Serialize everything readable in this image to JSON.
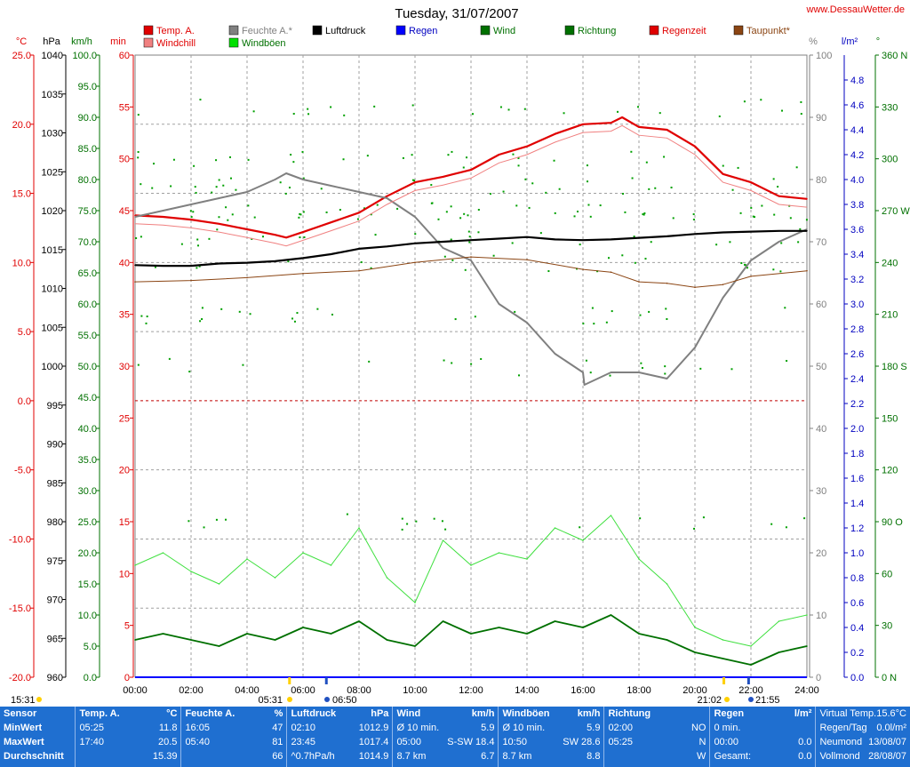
{
  "header": {
    "title": "Tuesday, 31/07/2007",
    "site": "www.DessauWetter.de"
  },
  "axes": {
    "units": {
      "temp": "°C",
      "pressure": "hPa",
      "speed": "km/h",
      "minutes": "min",
      "percent": "%",
      "rain": "l/m²",
      "direction": "°"
    },
    "temp_ticks": [
      "25.0",
      "20.0",
      "15.0",
      "10.0",
      "5.0",
      "0.0",
      "-5.0",
      "-10.0",
      "-15.0",
      "-20.0"
    ],
    "pressure_ticks": [
      "1040",
      "1035",
      "1030",
      "1025",
      "1020",
      "1015",
      "1010",
      "1005",
      "1000",
      "995",
      "990",
      "985",
      "980",
      "975",
      "970",
      "965",
      "960"
    ],
    "speed_ticks": [
      "100.0",
      "95.0",
      "90.0",
      "85.0",
      "80.0",
      "75.0",
      "70.0",
      "65.0",
      "60.0",
      "55.0",
      "50.0",
      "45.0",
      "40.0",
      "35.0",
      "30.0",
      "25.0",
      "20.0",
      "15.0",
      "10.0",
      "5.0",
      "0.0"
    ],
    "min_ticks": [
      "60",
      "55",
      "50",
      "45",
      "40",
      "35",
      "30",
      "25",
      "20",
      "15",
      "10",
      "5",
      "0"
    ],
    "percent_ticks": [
      "100",
      "90",
      "80",
      "70",
      "60",
      "50",
      "40",
      "30",
      "20",
      "10",
      "0"
    ],
    "rain_ticks": [
      "4.8",
      "4.6",
      "4.4",
      "4.2",
      "4.0",
      "3.8",
      "3.6",
      "3.4",
      "3.2",
      "3.0",
      "2.8",
      "2.6",
      "2.4",
      "2.2",
      "2.0",
      "1.8",
      "1.6",
      "1.4",
      "1.2",
      "1.0",
      "0.8",
      "0.6",
      "0.4",
      "0.2",
      "0.0"
    ],
    "dir_ticks": [
      "360 N",
      "330",
      "300",
      "270 W",
      "240",
      "210",
      "180 S",
      "150",
      "120",
      "90 O",
      "60",
      "30",
      "0 N"
    ],
    "x_ticks": [
      "00:00",
      "02:00",
      "04:00",
      "06:00",
      "08:00",
      "10:00",
      "12:00",
      "14:00",
      "16:00",
      "18:00",
      "20:00",
      "22:00",
      "24:00"
    ]
  },
  "legend": [
    {
      "label": "Temp. A.",
      "color": "#e00000"
    },
    {
      "label": "Windchill",
      "color": "#f08080"
    },
    {
      "label": "Feuchte A.*",
      "color": "#808080"
    },
    {
      "label": "Windböen",
      "color": "#00e000"
    },
    {
      "label": "Luftdruck",
      "color": "#000000"
    },
    {
      "label": "Regen",
      "color": "#0000ff"
    },
    {
      "label": "Wind",
      "color": "#007000"
    },
    {
      "label": "Richtung",
      "color": "#007000"
    },
    {
      "label": "Regenzeit",
      "color": "#e00000"
    },
    {
      "label": "Taupunkt*",
      "color": "#8b4513"
    }
  ],
  "sun": {
    "prev_sunset": "15:31",
    "sunrise": "05:31",
    "moonrise": "06:50",
    "sunset": "21:02",
    "moonset": "21:55"
  },
  "chart_data": {
    "type": "line",
    "title": "Tuesday, 31/07/2007",
    "x_unit": "hours",
    "xlim": [
      0,
      24
    ],
    "ylim_temp": [
      -20,
      25
    ],
    "ylim_pressure": [
      960,
      1040
    ],
    "ylim_wind": [
      0,
      100
    ],
    "ylim_humidity": [
      0,
      100
    ],
    "series": [
      {
        "name": "Temp. A.",
        "unit": "°C",
        "x": [
          0,
          1,
          2,
          3,
          4,
          5,
          5.4,
          6,
          7,
          8,
          9,
          10,
          11,
          12,
          13,
          14,
          15,
          16,
          17,
          17.4,
          18,
          19,
          20,
          21,
          22,
          23,
          24
        ],
        "values": [
          13.4,
          13.3,
          13.1,
          12.8,
          12.4,
          12.0,
          11.8,
          12.2,
          12.9,
          13.6,
          14.8,
          15.8,
          16.2,
          16.7,
          17.8,
          18.4,
          19.3,
          20.0,
          20.1,
          20.5,
          19.8,
          19.6,
          18.4,
          16.4,
          15.8,
          14.8,
          14.6
        ]
      },
      {
        "name": "Feuchte A.*",
        "unit": "%",
        "x": [
          0,
          1,
          2,
          3,
          4,
          5,
          5.4,
          6,
          7,
          8,
          9,
          10,
          11,
          12,
          13,
          14,
          15,
          16,
          16.05,
          17,
          18,
          19,
          20,
          21,
          22,
          23,
          24
        ],
        "values": [
          74,
          75,
          76,
          77,
          78,
          80,
          81,
          80,
          79,
          78,
          77,
          74,
          69,
          67,
          60,
          57,
          52,
          49,
          47,
          49,
          49,
          48,
          53,
          61,
          67,
          70,
          72
        ]
      },
      {
        "name": "Luftdruck",
        "unit": "hPa",
        "x": [
          0,
          1,
          2,
          3,
          4,
          5,
          6,
          7,
          8,
          9,
          10,
          11,
          12,
          13,
          14,
          15,
          16,
          17,
          18,
          19,
          20,
          21,
          22,
          23,
          23.75,
          24
        ],
        "values": [
          1013.0,
          1012.9,
          1012.9,
          1013.2,
          1013.3,
          1013.5,
          1013.9,
          1014.4,
          1015.1,
          1015.4,
          1015.8,
          1016.0,
          1016.2,
          1016.4,
          1016.6,
          1016.3,
          1016.2,
          1016.3,
          1016.5,
          1016.7,
          1017.0,
          1017.2,
          1017.3,
          1017.4,
          1017.4,
          1017.4
        ]
      },
      {
        "name": "Taupunkt*",
        "unit": "°C",
        "x": [
          0,
          2,
          4,
          6,
          8,
          10,
          12,
          14,
          16,
          17,
          18,
          19,
          20,
          21,
          22,
          24
        ],
        "values": [
          8.6,
          8.7,
          8.9,
          9.2,
          9.4,
          10.0,
          10.4,
          10.2,
          9.5,
          9.3,
          8.6,
          8.5,
          8.2,
          8.4,
          9.0,
          9.4
        ]
      },
      {
        "name": "Wind",
        "unit": "km/h",
        "x": [
          0,
          1,
          2,
          3,
          4,
          5,
          6,
          7,
          8,
          9,
          10,
          11,
          12,
          13,
          14,
          15,
          16,
          17,
          18,
          19,
          20,
          21,
          22,
          23,
          24
        ],
        "values": [
          6,
          7,
          6,
          5,
          7,
          6,
          8,
          7,
          9,
          6,
          5,
          9,
          7,
          8,
          7,
          9,
          8,
          10,
          7,
          6,
          4,
          3,
          2,
          4,
          5
        ]
      },
      {
        "name": "Windböen",
        "unit": "km/h",
        "x": [
          0,
          1,
          2,
          3,
          4,
          5,
          6,
          7,
          8,
          9,
          10,
          11,
          12,
          13,
          14,
          15,
          16,
          17,
          18,
          19,
          20,
          21,
          22,
          23,
          24
        ],
        "values": [
          18,
          20,
          17,
          15,
          19,
          16,
          20,
          18,
          24,
          16,
          12,
          22,
          18,
          20,
          19,
          24,
          22,
          26,
          19,
          15,
          8,
          6,
          5,
          9,
          10
        ]
      }
    ]
  },
  "table": {
    "row_labels": [
      "Sensor",
      "MinWert",
      "MaxWert",
      "Durchschnitt"
    ],
    "columns": [
      {
        "header": "Temp. A.",
        "unit": "°C",
        "rows": [
          [
            "05:25",
            "11.8"
          ],
          [
            "17:40",
            "20.5"
          ],
          [
            "",
            "15.39"
          ]
        ]
      },
      {
        "header": "Feuchte A.",
        "unit": "%",
        "rows": [
          [
            "16:05",
            "47"
          ],
          [
            "05:40",
            "81"
          ],
          [
            "",
            "66"
          ]
        ]
      },
      {
        "header": "Luftdruck",
        "unit": "hPa",
        "rows": [
          [
            "02:10",
            "1012.9"
          ],
          [
            "23:45",
            "1017.4"
          ],
          [
            "^0.7hPa/h",
            "1014.9"
          ]
        ]
      },
      {
        "header": "Wind",
        "unit": "km/h",
        "rows": [
          [
            "Ø 10 min.",
            "5.9"
          ],
          [
            "05:00",
            "S-SW 18.4"
          ],
          [
            "8.7 km",
            "6.7"
          ]
        ]
      },
      {
        "header": "Windböen",
        "unit": "km/h",
        "rows": [
          [
            "Ø 10 min.",
            "5.9"
          ],
          [
            "10:50",
            "SW 28.6"
          ],
          [
            "8.7 km",
            "8.8"
          ]
        ]
      },
      {
        "header": "Richtung",
        "unit": "",
        "rows": [
          [
            "02:00",
            "NO"
          ],
          [
            "05:25",
            "N"
          ],
          [
            "",
            "W"
          ]
        ]
      },
      {
        "header": "Regen",
        "unit": "l/m²",
        "rows": [
          [
            "0 min.",
            ""
          ],
          [
            "00:00",
            "0.0"
          ],
          [
            "Gesamt:",
            "0.0"
          ]
        ]
      }
    ],
    "extra": [
      [
        "Virtual Temp.",
        "15.6°C"
      ],
      [
        "Regen/Tag",
        "0.0l/m²"
      ],
      [
        "Neumond",
        "13/08/07"
      ],
      [
        "Vollmond",
        "28/08/07"
      ]
    ]
  }
}
